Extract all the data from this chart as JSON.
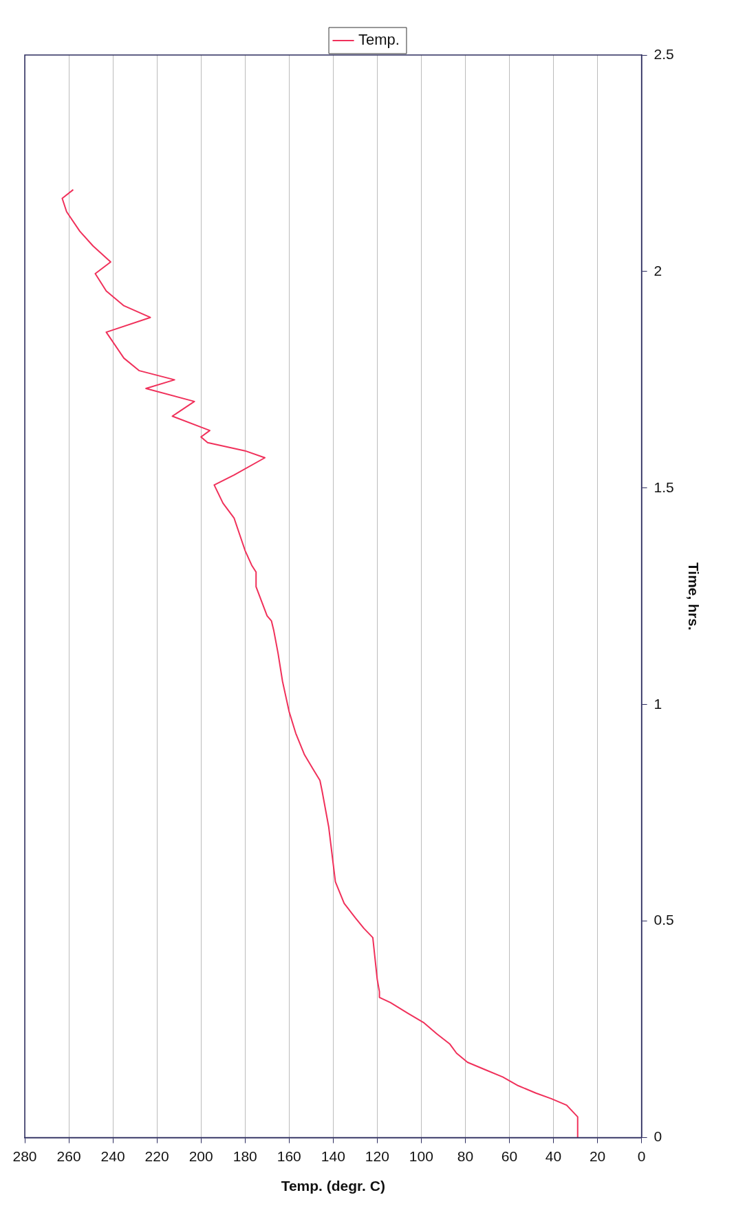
{
  "chart_data": {
    "type": "line",
    "xlabel": "Temp. (degr. C)",
    "ylabel": "Time, hrs.",
    "xlim": [
      280,
      0
    ],
    "xticks": [
      280,
      260,
      240,
      220,
      200,
      180,
      160,
      140,
      120,
      100,
      80,
      60,
      40,
      20,
      0
    ],
    "ylim": [
      0,
      2.5
    ],
    "yticks": [
      0,
      0.5,
      1,
      1.5,
      2,
      2.5
    ],
    "grid": "x",
    "legend": "top",
    "marker": "none",
    "line_style": "solid",
    "series": [
      {
        "name": "Temp.",
        "color": "#f0305a",
        "x": [
          29,
          29,
          34,
          41,
          48,
          56,
          63,
          71,
          79,
          84,
          87,
          93,
          99,
          106,
          114,
          119,
          119,
          120,
          122,
          126,
          130,
          135,
          139,
          140,
          142,
          145,
          146,
          149,
          153,
          157,
          160,
          163,
          165,
          167,
          168,
          170,
          175,
          175,
          177,
          180,
          185,
          190,
          194,
          185,
          171,
          180,
          197,
          200,
          196,
          213,
          203,
          225,
          212,
          228,
          235,
          243,
          223,
          235,
          243,
          248,
          241,
          249,
          255,
          261,
          263,
          258
        ],
        "values": [
          0,
          0.048,
          0.075,
          0.09,
          0.103,
          0.12,
          0.14,
          0.157,
          0.174,
          0.195,
          0.216,
          0.24,
          0.266,
          0.287,
          0.312,
          0.324,
          0.337,
          0.366,
          0.462,
          0.483,
          0.508,
          0.541,
          0.591,
          0.633,
          0.717,
          0.8,
          0.825,
          0.85,
          0.884,
          0.934,
          0.984,
          1.054,
          1.118,
          1.172,
          1.193,
          1.205,
          1.272,
          1.306,
          1.322,
          1.356,
          1.431,
          1.465,
          1.507,
          1.53,
          1.57,
          1.586,
          1.605,
          1.618,
          1.633,
          1.666,
          1.7,
          1.73,
          1.75,
          1.771,
          1.8,
          1.86,
          1.894,
          1.921,
          1.955,
          1.995,
          2.022,
          2.059,
          2.093,
          2.138,
          2.169,
          2.189
        ]
      }
    ]
  }
}
